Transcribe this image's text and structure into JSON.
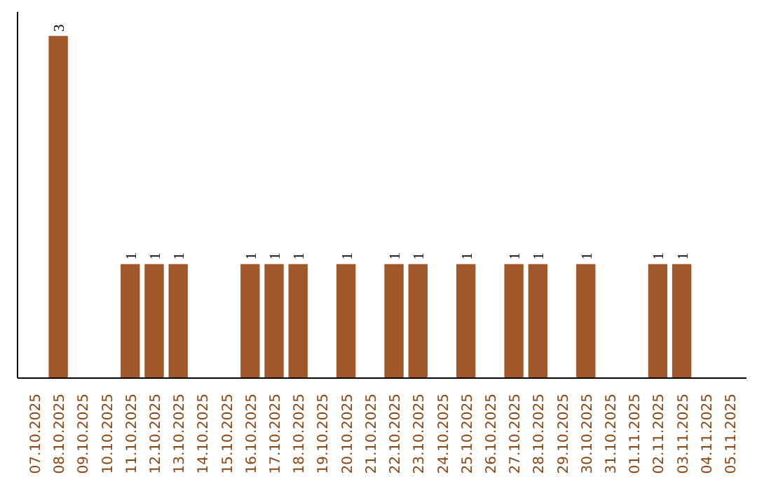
{
  "chart_data": {
    "type": "bar",
    "categories": [
      "07.10.2025",
      "08.10.2025",
      "09.10.2025",
      "10.10.2025",
      "11.10.2025",
      "12.10.2025",
      "13.10.2025",
      "14.10.2025",
      "15.10.2025",
      "16.10.2025",
      "17.10.2025",
      "18.10.2025",
      "19.10.2025",
      "20.10.2025",
      "21.10.2025",
      "22.10.2025",
      "23.10.2025",
      "24.10.2025",
      "25.10.2025",
      "26.10.2025",
      "27.10.2025",
      "28.10.2025",
      "29.10.2025",
      "30.10.2025",
      "31.10.2025",
      "01.11.2025",
      "02.11.2025",
      "03.11.2025",
      "04.11.2025",
      "05.11.2025"
    ],
    "values": [
      0,
      3,
      0,
      0,
      1,
      1,
      1,
      0,
      0,
      1,
      1,
      1,
      0,
      1,
      0,
      1,
      1,
      0,
      1,
      0,
      1,
      1,
      0,
      1,
      0,
      0,
      1,
      1,
      0,
      0
    ],
    "value_labels": [
      null,
      "3",
      null,
      null,
      "1",
      "1",
      "1",
      null,
      null,
      "1",
      "1",
      "1",
      null,
      "1",
      null,
      "1",
      "1",
      null,
      "1",
      null,
      "1",
      "1",
      null,
      "1",
      null,
      null,
      "1",
      "1",
      null,
      null
    ],
    "color": "#a0572a",
    "tick_labels": "x",
    "grid": false
  }
}
